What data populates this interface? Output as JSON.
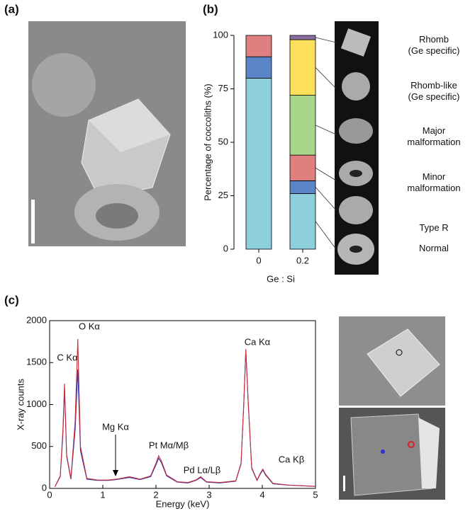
{
  "panel_labels": [
    "(a)",
    "(b)",
    "(c)"
  ],
  "chart_data": [
    {
      "type": "stacked_bar",
      "xlabel": "Ge : Si",
      "ylabel": "Percentage of coccoliths (%)",
      "categories": [
        "0",
        "0.2"
      ],
      "ylim": [
        0,
        100
      ],
      "yticks": [
        0,
        25,
        50,
        75,
        100
      ],
      "series": [
        {
          "name": "Normal",
          "color": "#8ecfdc",
          "values": [
            80,
            26
          ]
        },
        {
          "name": "Type R",
          "color": "#5a86c8",
          "values": [
            10,
            6
          ]
        },
        {
          "name": "Minor\nmalformation",
          "color": "#e07f80",
          "values": [
            10,
            12
          ]
        },
        {
          "name": "Major\nmalformation",
          "color": "#a8d58a",
          "values": [
            0,
            28
          ]
        },
        {
          "name": "Rhomb-like\n(Ge specific)",
          "color": "#fde05a",
          "values": [
            0,
            26
          ]
        },
        {
          "name": "Rhomb\n(Ge specific)",
          "color": "#8a6fa0",
          "values": [
            0,
            2
          ]
        }
      ]
    },
    {
      "type": "line",
      "xlabel": "Energy (keV)",
      "ylabel": "X-ray counts",
      "xlim": [
        0,
        5
      ],
      "xticks": [
        0,
        1,
        2,
        3,
        4,
        5
      ],
      "ylim": [
        0,
        2000
      ],
      "yticks": [
        0,
        500,
        1000,
        1500,
        2000
      ],
      "annotations": [
        "C Kα",
        "O Kα",
        "Mg Kα",
        "Pt Mα/Mβ",
        "Pd Lα/Lβ",
        "Ca Kα",
        "Ca Kβ"
      ],
      "x": [
        0.1,
        0.2,
        0.25,
        0.28,
        0.32,
        0.4,
        0.48,
        0.53,
        0.58,
        0.7,
        0.9,
        1.1,
        1.25,
        1.3,
        1.5,
        1.7,
        1.9,
        2.0,
        2.05,
        2.1,
        2.2,
        2.4,
        2.6,
        2.75,
        2.84,
        2.95,
        3.2,
        3.5,
        3.6,
        3.65,
        3.69,
        3.73,
        3.8,
        3.9,
        3.97,
        4.01,
        4.06,
        4.2,
        4.5,
        5.0
      ],
      "series": [
        {
          "color": "#2b2ba8",
          "values": [
            20,
            140,
            650,
            1200,
            380,
            110,
            700,
            1420,
            450,
            110,
            95,
            95,
            105,
            110,
            130,
            105,
            140,
            280,
            360,
            310,
            150,
            75,
            65,
            95,
            130,
            75,
            65,
            85,
            290,
            980,
            1640,
            1080,
            240,
            95,
            180,
            220,
            160,
            55,
            38,
            24
          ]
        },
        {
          "color": "#c8303a",
          "values": [
            20,
            150,
            700,
            1250,
            400,
            120,
            800,
            1780,
            500,
            120,
            100,
            100,
            110,
            115,
            140,
            110,
            150,
            300,
            390,
            330,
            160,
            80,
            70,
            100,
            140,
            80,
            70,
            90,
            300,
            1000,
            1660,
            1100,
            250,
            100,
            190,
            230,
            170,
            60,
            40,
            25
          ]
        }
      ]
    }
  ]
}
